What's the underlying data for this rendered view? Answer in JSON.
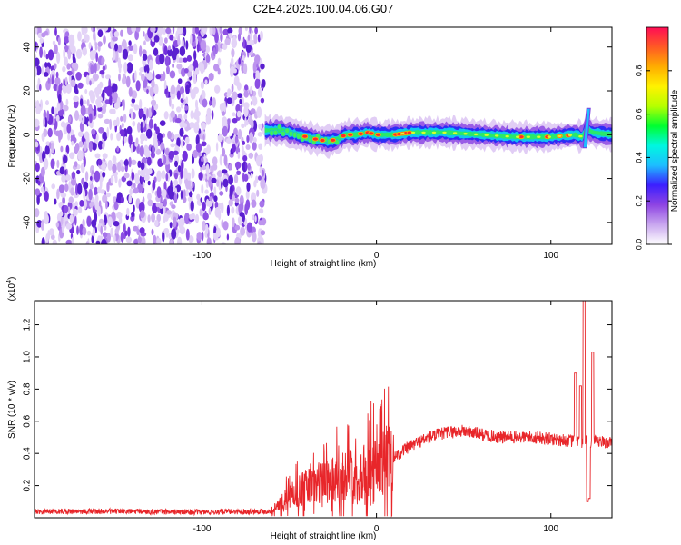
{
  "title": "C2E4.2025.100.04.06.G07",
  "chart_data": [
    {
      "type": "heatmap",
      "xlabel": "Height of straight line (km)",
      "ylabel": "Frequency (Hz)",
      "xlim": [
        -196,
        135
      ],
      "ylim": [
        -50,
        49
      ],
      "xticks": [
        -100,
        0,
        100
      ],
      "xtick_labels": [
        "-100",
        "0",
        "100"
      ],
      "yticks": [
        -40,
        -20,
        0,
        20,
        40
      ],
      "ytick_labels": [
        "-40",
        "-20",
        "0",
        "20",
        "40"
      ],
      "noise_region_x": [
        -196,
        -64
      ],
      "track_points": [
        {
          "x": -64,
          "y": 2
        },
        {
          "x": -55,
          "y": 2
        },
        {
          "x": -50,
          "y": 1
        },
        {
          "x": -45,
          "y": 0
        },
        {
          "x": -40,
          "y": -1
        },
        {
          "x": -35,
          "y": -2
        },
        {
          "x": -28,
          "y": -3
        },
        {
          "x": -22,
          "y": -2
        },
        {
          "x": -18,
          "y": 0
        },
        {
          "x": -12,
          "y": 0
        },
        {
          "x": -5,
          "y": 1
        },
        {
          "x": 0,
          "y": 0
        },
        {
          "x": 10,
          "y": 0
        },
        {
          "x": 20,
          "y": 1
        },
        {
          "x": 40,
          "y": 1
        },
        {
          "x": 60,
          "y": 0
        },
        {
          "x": 80,
          "y": -1
        },
        {
          "x": 100,
          "y": -1
        },
        {
          "x": 114,
          "y": 0
        },
        {
          "x": 118,
          "y": -1
        },
        {
          "x": 120,
          "y": 3
        },
        {
          "x": 124,
          "y": 1
        },
        {
          "x": 135,
          "y": 0
        }
      ],
      "hotspots_x": [
        -41,
        -35,
        -31,
        -25,
        -19,
        -15,
        -9,
        -5,
        -3,
        1,
        11,
        13,
        15,
        17,
        19,
        83,
        98,
        105,
        110
      ],
      "colorbar": {
        "label": "Normalized spectral amplitude",
        "range": [
          0,
          1
        ],
        "ticks": [
          "0.0",
          "0.2",
          "0.4",
          "0.6",
          "0.8"
        ],
        "tick_values": [
          0,
          0.2,
          0.4,
          0.6,
          0.8
        ],
        "colors": [
          "#ffffff",
          "#c9a7ef",
          "#8e44e3",
          "#3b1fff",
          "#1dbeff",
          "#00f7e0",
          "#00ff30",
          "#b6ff00",
          "#fff200",
          "#ffad00",
          "#ff5a24",
          "#ff0d55"
        ]
      }
    },
    {
      "type": "line",
      "xlabel": "Height of straight line (km)",
      "ylabel": "SNR (10 * v/v)",
      "multiplier": "(x10",
      "multiplier_exp": "4",
      "multiplier_close": ")",
      "xlim": [
        -196,
        135
      ],
      "ylim": [
        0,
        1.35
      ],
      "xticks": [
        -100,
        0,
        100
      ],
      "xtick_labels": [
        "-100",
        "0",
        "100"
      ],
      "yticks": [
        0.2,
        0.4,
        0.6,
        0.8,
        1.0,
        1.2
      ],
      "ytick_labels": [
        "0.2",
        "0.4",
        "0.6",
        "0.8",
        "1.0",
        "1.2"
      ],
      "color": "#e8262a",
      "envelope": [
        {
          "x": -196,
          "y": 0.04
        },
        {
          "x": -150,
          "y": 0.04
        },
        {
          "x": -100,
          "y": 0.035
        },
        {
          "x": -70,
          "y": 0.04
        },
        {
          "x": -60,
          "y": 0.04
        },
        {
          "x": -50,
          "y": 0.12
        },
        {
          "x": -40,
          "y": 0.18
        },
        {
          "x": -30,
          "y": 0.22
        },
        {
          "x": -20,
          "y": 0.25
        },
        {
          "x": -10,
          "y": 0.25
        },
        {
          "x": 0,
          "y": 0.3
        },
        {
          "x": 10,
          "y": 0.38
        },
        {
          "x": 20,
          "y": 0.45
        },
        {
          "x": 30,
          "y": 0.5
        },
        {
          "x": 40,
          "y": 0.53
        },
        {
          "x": 50,
          "y": 0.54
        },
        {
          "x": 60,
          "y": 0.52
        },
        {
          "x": 70,
          "y": 0.5
        },
        {
          "x": 80,
          "y": 0.5
        },
        {
          "x": 90,
          "y": 0.5
        },
        {
          "x": 100,
          "y": 0.49
        },
        {
          "x": 110,
          "y": 0.48
        },
        {
          "x": 115,
          "y": 0.47
        },
        {
          "x": 135,
          "y": 0.47
        }
      ],
      "spikes": [
        {
          "x": 114,
          "y": 0.9
        },
        {
          "x": 117,
          "y": 0.82
        },
        {
          "x": 119,
          "y": 1.38
        },
        {
          "x": 121,
          "y": 0.1
        },
        {
          "x": 122,
          "y": 0.12
        },
        {
          "x": 124,
          "y": 1.03
        }
      ]
    }
  ]
}
